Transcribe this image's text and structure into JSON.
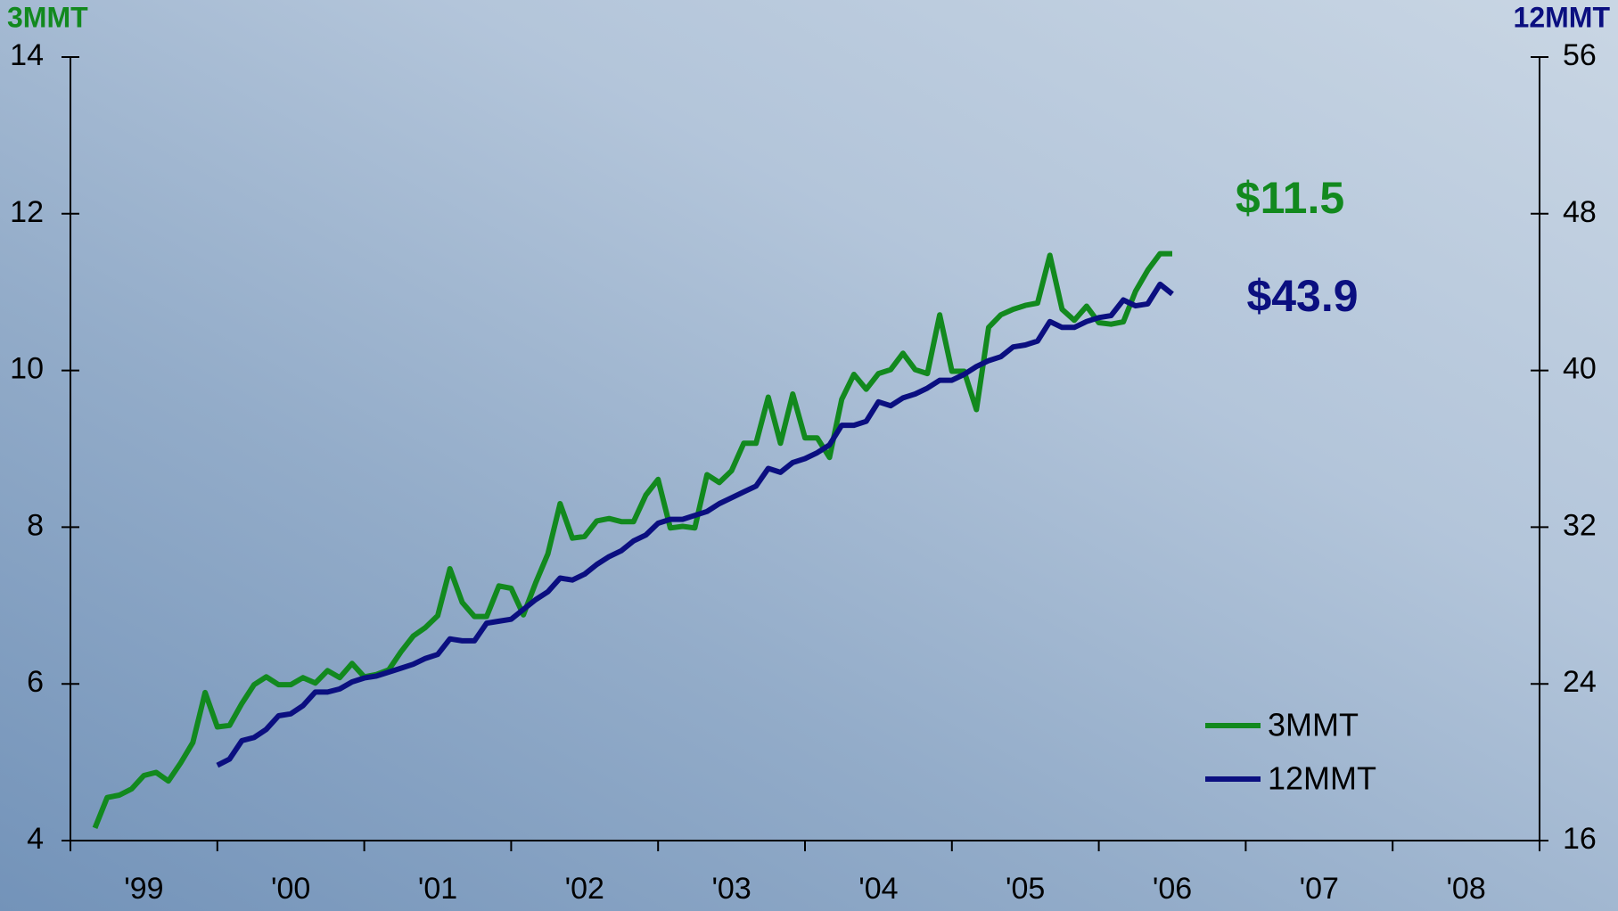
{
  "chart_data": {
    "type": "line",
    "y_label": "3MMT",
    "y_label_color": "#12891e",
    "y2_label": "12MMT",
    "y2_label_color": "#0b0f80",
    "annotations": [
      {
        "text": "$11.5",
        "color": "#12891e"
      },
      {
        "text": "$43.9",
        "color": "#0b0f80"
      }
    ],
    "categories": [
      "'99",
      "'00",
      "'01",
      "'02",
      "'03",
      "'04",
      "'05",
      "'06",
      "'07",
      "'08"
    ],
    "xlim": [
      1999,
      2009
    ],
    "xticks": [
      1999,
      2000,
      2001,
      2002,
      2003,
      2004,
      2005,
      2006,
      2007,
      2008,
      2009
    ],
    "ylim": [
      4,
      14
    ],
    "yticks": [
      4,
      6,
      8,
      10,
      12,
      14
    ],
    "y2lim": [
      16,
      56
    ],
    "y2ticks": [
      16,
      24,
      32,
      40,
      48,
      56
    ],
    "legend": "lower right",
    "series": [
      {
        "name": "3MMT",
        "color": "#12891e",
        "x": [
          1999.167,
          1999.25,
          1999.333,
          1999.417,
          1999.5,
          1999.583,
          1999.667,
          1999.75,
          1999.833,
          1999.917,
          2000.0,
          2000.083,
          2000.167,
          2000.25,
          2000.333,
          2000.417,
          2000.5,
          2000.583,
          2000.667,
          2000.75,
          2000.833,
          2000.917,
          2001.0,
          2001.083,
          2001.167,
          2001.25,
          2001.333,
          2001.417,
          2001.5,
          2001.583,
          2001.667,
          2001.75,
          2001.833,
          2001.917,
          2002.0,
          2002.083,
          2002.167,
          2002.25,
          2002.333,
          2002.417,
          2002.5,
          2002.583,
          2002.667,
          2002.75,
          2002.833,
          2002.917,
          2003.0,
          2003.083,
          2003.167,
          2003.25,
          2003.333,
          2003.417,
          2003.5,
          2003.583,
          2003.667,
          2003.75,
          2003.833,
          2003.917,
          2004.0,
          2004.083,
          2004.167,
          2004.25,
          2004.333,
          2004.417,
          2004.5,
          2004.583,
          2004.667,
          2004.75,
          2004.833,
          2004.917,
          2005.0,
          2005.083,
          2005.167,
          2005.25,
          2005.333,
          2005.417,
          2005.5,
          2005.583,
          2005.667,
          2005.75,
          2005.833,
          2005.917,
          2006.0,
          2006.083,
          2006.167,
          2006.25,
          2006.333,
          2006.417,
          2006.5
        ],
        "values": [
          4.16,
          4.55,
          4.58,
          4.66,
          4.83,
          4.87,
          4.76,
          4.99,
          5.25,
          5.89,
          5.45,
          5.47,
          5.75,
          5.99,
          6.09,
          5.99,
          5.99,
          6.08,
          6.01,
          6.17,
          6.08,
          6.26,
          6.09,
          6.12,
          6.18,
          6.41,
          6.61,
          6.72,
          6.87,
          7.47,
          7.04,
          6.86,
          6.86,
          7.25,
          7.22,
          6.88,
          7.29,
          7.66,
          8.3,
          7.86,
          7.88,
          8.08,
          8.11,
          8.07,
          8.07,
          8.41,
          8.61,
          7.99,
          8.01,
          7.99,
          8.67,
          8.57,
          8.72,
          9.07,
          9.07,
          9.66,
          9.07,
          9.7,
          9.14,
          9.14,
          8.89,
          9.63,
          9.95,
          9.76,
          9.96,
          10.01,
          10.22,
          10.01,
          9.96,
          10.71,
          9.99,
          9.99,
          9.5,
          10.55,
          10.71,
          10.78,
          10.83,
          10.86,
          11.47,
          10.78,
          10.64,
          10.82,
          10.61,
          10.59,
          10.62,
          11.01,
          11.28,
          11.49,
          11.49
        ]
      },
      {
        "name": "12MMT",
        "color": "#0b0f80",
        "axis": "y2",
        "x": [
          2000.0,
          2000.083,
          2000.167,
          2000.25,
          2000.333,
          2000.417,
          2000.5,
          2000.583,
          2000.667,
          2000.75,
          2000.833,
          2000.917,
          2001.0,
          2001.083,
          2001.167,
          2001.25,
          2001.333,
          2001.417,
          2001.5,
          2001.583,
          2001.667,
          2001.75,
          2001.833,
          2001.917,
          2002.0,
          2002.083,
          2002.167,
          2002.25,
          2002.333,
          2002.417,
          2002.5,
          2002.583,
          2002.667,
          2002.75,
          2002.833,
          2002.917,
          2003.0,
          2003.083,
          2003.167,
          2003.25,
          2003.333,
          2003.417,
          2003.5,
          2003.583,
          2003.667,
          2003.75,
          2003.833,
          2003.917,
          2004.0,
          2004.083,
          2004.167,
          2004.25,
          2004.333,
          2004.417,
          2004.5,
          2004.583,
          2004.667,
          2004.75,
          2004.833,
          2004.917,
          2005.0,
          2005.083,
          2005.167,
          2005.25,
          2005.333,
          2005.417,
          2005.5,
          2005.583,
          2005.667,
          2005.75,
          2005.833,
          2005.917,
          2006.0,
          2006.083,
          2006.167,
          2006.25,
          2006.333,
          2006.417,
          2006.5
        ],
        "values": [
          19.84,
          20.16,
          21.1,
          21.26,
          21.68,
          22.37,
          22.47,
          22.89,
          23.58,
          23.58,
          23.74,
          24.1,
          24.3,
          24.4,
          24.6,
          24.8,
          25.0,
          25.3,
          25.5,
          26.3,
          26.2,
          26.2,
          27.1,
          27.2,
          27.3,
          27.8,
          28.3,
          28.7,
          29.4,
          29.3,
          29.6,
          30.1,
          30.5,
          30.8,
          31.3,
          31.6,
          32.2,
          32.4,
          32.4,
          32.6,
          32.8,
          33.2,
          33.5,
          33.8,
          34.1,
          35.0,
          34.8,
          35.3,
          35.5,
          35.8,
          36.2,
          37.2,
          37.2,
          37.4,
          38.4,
          38.2,
          38.6,
          38.8,
          39.1,
          39.5,
          39.5,
          39.8,
          40.2,
          40.5,
          40.7,
          41.2,
          41.3,
          41.5,
          42.5,
          42.2,
          42.2,
          42.5,
          42.7,
          42.8,
          43.6,
          43.3,
          43.4,
          44.4,
          43.9
        ]
      }
    ]
  }
}
